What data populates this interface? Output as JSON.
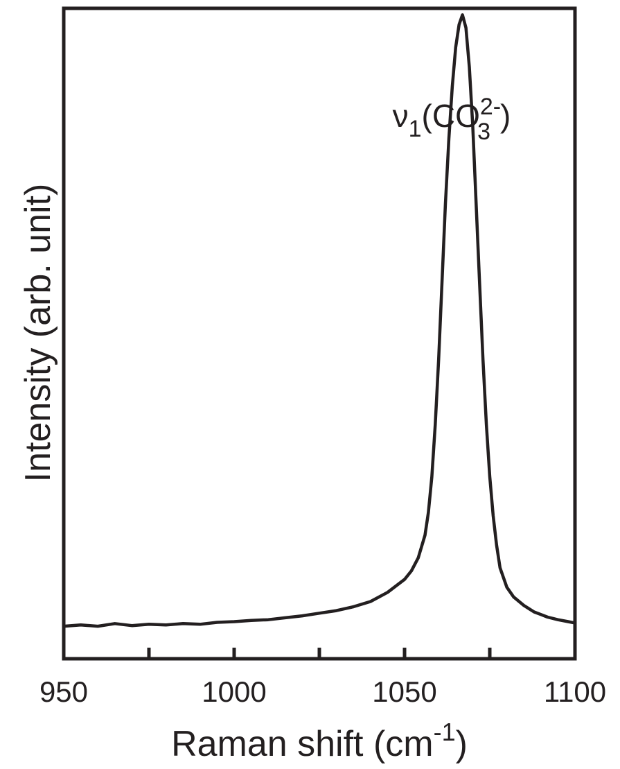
{
  "chart_data": {
    "type": "line",
    "title": "",
    "xlabel": "Raman shift (cm",
    "xlabel_superscript": "-1",
    "xlabel_suffix": ")",
    "ylabel": "Intensity (arb. unit)",
    "xlim": [
      950,
      1100
    ],
    "ylim": [
      0,
      100
    ],
    "x_ticks": [
      950,
      1000,
      1050,
      1100
    ],
    "x_tick_labels": [
      "950",
      "1000",
      "1050",
      "1100"
    ],
    "x_minor_ticks": [
      975,
      1025,
      1075
    ],
    "y_tick_labels": [],
    "grid": false,
    "line_color": "#231f20",
    "annotation": {
      "symbol": "ν",
      "sub": "1",
      "open": "(CO",
      "sup": "2-",
      "sub2": "3",
      "close": ")",
      "x": 1067,
      "y": 88
    },
    "series": [
      {
        "x": [
          950,
          955,
          960,
          965,
          970,
          975,
          980,
          985,
          990,
          995,
          1000,
          1005,
          1010,
          1015,
          1020,
          1025,
          1030,
          1035,
          1040,
          1045,
          1050,
          1052,
          1054,
          1056,
          1057,
          1058,
          1059,
          1060,
          1061,
          1062,
          1063,
          1064,
          1065,
          1066,
          1067,
          1068,
          1069,
          1070,
          1071,
          1072,
          1073,
          1074,
          1075,
          1076,
          1077,
          1078,
          1080,
          1082,
          1085,
          1088,
          1090,
          1092,
          1095,
          1098,
          1100
        ],
        "y": [
          5.0,
          5.2,
          5.0,
          5.4,
          5.1,
          5.3,
          5.2,
          5.4,
          5.3,
          5.6,
          5.7,
          5.9,
          6.0,
          6.3,
          6.6,
          7.0,
          7.4,
          8.0,
          8.8,
          10.2,
          12.2,
          13.5,
          15.5,
          19.0,
          22.5,
          28.0,
          36.0,
          46.0,
          58.0,
          70.0,
          80.0,
          88.0,
          94.0,
          97.5,
          99.0,
          97.0,
          91.0,
          82.0,
          70.0,
          58.0,
          46.0,
          36.0,
          28.0,
          22.0,
          17.5,
          14.0,
          11.0,
          9.5,
          8.2,
          7.2,
          6.8,
          6.4,
          6.0,
          5.7,
          5.5
        ]
      }
    ]
  }
}
